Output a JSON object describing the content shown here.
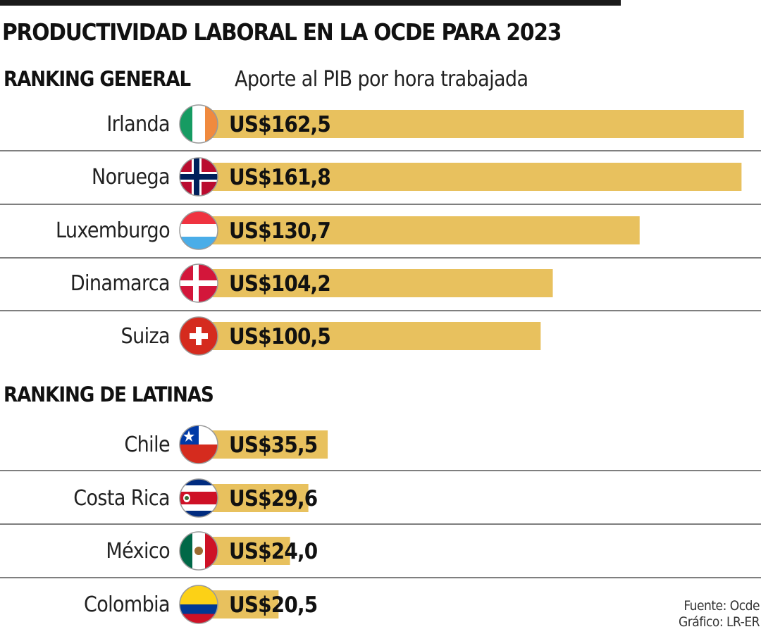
{
  "title": "PRODUCTIVIDAD LABORAL EN LA OCDE PARA 2023",
  "sections": {
    "general": "RANKING GENERAL",
    "general_subtitle": "Aporte al PIB por hora trabajada",
    "latinas": "RANKING DE LATINAS"
  },
  "source": {
    "line1": "Fuente: Ocde",
    "line2": "Gráfico: LR-ER"
  },
  "colors": {
    "bar": "#E8C15E",
    "separator": "#555555"
  },
  "chart_data": [
    {
      "type": "bar",
      "orientation": "horizontal",
      "title": "RANKING GENERAL",
      "categories": [
        "Irlanda",
        "Noruega",
        "Luxemburgo",
        "Dinamarca",
        "Suiza"
      ],
      "values": [
        162.5,
        161.8,
        130.7,
        104.2,
        100.5
      ],
      "value_labels": [
        "US$162,5",
        "US$161,8",
        "US$130,7",
        "US$104,2",
        "US$100,5"
      ],
      "flags": [
        "ireland-flag",
        "norway-flag",
        "luxembourg-flag",
        "denmark-flag",
        "switzerland-flag"
      ]
    },
    {
      "type": "bar",
      "orientation": "horizontal",
      "title": "RANKING DE LATINAS",
      "categories": [
        "Chile",
        "Costa Rica",
        "México",
        "Colombia"
      ],
      "values": [
        35.5,
        29.6,
        24.0,
        20.5
      ],
      "value_labels": [
        "US$35,5",
        "US$29,6",
        "US$24,0",
        "US$20,5"
      ],
      "flags": [
        "chile-flag",
        "costa-rica-flag",
        "mexico-flag",
        "colombia-flag"
      ]
    }
  ]
}
